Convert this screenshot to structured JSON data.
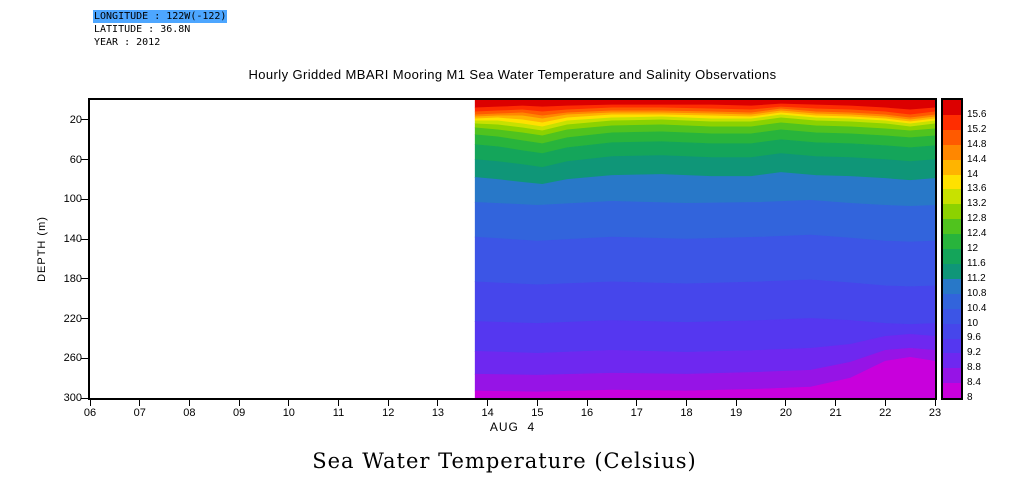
{
  "meta": {
    "longitude_line": "LONGITUDE : 122W(-122)",
    "latitude_line": "LATITUDE : 36.8N",
    "year_line": "YEAR : 2012",
    "highlight_color": "#4da6ff"
  },
  "footer_title": "Sea Water Temperature (Celsius)",
  "chart_data": {
    "type": "heatmap",
    "title": "Hourly Gridded MBARI Mooring M1 Sea Water Temperature and Salinity Observations",
    "xlabel": "AUG  4",
    "ylabel": "DEPTH (m)",
    "x_range": [
      6,
      23
    ],
    "depth_range": [
      0,
      300
    ],
    "data_time_start": 13.75,
    "x_tick_labels": [
      "06",
      "07",
      "08",
      "09",
      "10",
      "11",
      "12",
      "13",
      "14",
      "15",
      "16",
      "17",
      "18",
      "19",
      "20",
      "21",
      "22",
      "23"
    ],
    "y_tick_labels": [
      "20",
      "60",
      "100",
      "140",
      "180",
      "220",
      "260",
      "300"
    ],
    "colorbar_labels": [
      "15.6",
      "15.2",
      "14.8",
      "14.4",
      "14",
      "13.6",
      "13.2",
      "12.8",
      "12.4",
      "12",
      "11.6",
      "11.2",
      "10.8",
      "10.4",
      "10",
      "9.6",
      "9.2",
      "8.8",
      "8.4",
      "8"
    ],
    "band_colors": [
      "#dc0000",
      "#ff2d00",
      "#ff5a00",
      "#ff8700",
      "#ffb400",
      "#ffe100",
      "#c8e100",
      "#8cd200",
      "#50c31e",
      "#28b43c",
      "#14a55a",
      "#0f9678",
      "#2878c8",
      "#3264dc",
      "#3c55e6",
      "#4646eb",
      "#5537f0",
      "#6e28f0",
      "#9614e6",
      "#c800dc"
    ],
    "boundaries": [
      {
        "level": 15.6,
        "points": [
          [
            13.75,
            8
          ],
          [
            14.2,
            7
          ],
          [
            14.7,
            6
          ],
          [
            15.1,
            7
          ],
          [
            15.6,
            6
          ],
          [
            16.5,
            5
          ],
          [
            17.5,
            5
          ],
          [
            18.5,
            5
          ],
          [
            19.3,
            6
          ],
          [
            19.9,
            4
          ],
          [
            20.6,
            5
          ],
          [
            21.3,
            6
          ],
          [
            22,
            8
          ],
          [
            22.5,
            10
          ],
          [
            23,
            8
          ]
        ]
      },
      {
        "level": 15.2,
        "points": [
          [
            13.75,
            12
          ],
          [
            14.2,
            11
          ],
          [
            14.7,
            10
          ],
          [
            15.1,
            12
          ],
          [
            15.6,
            10
          ],
          [
            16.5,
            8
          ],
          [
            17.5,
            8
          ],
          [
            18.5,
            9
          ],
          [
            19.3,
            10
          ],
          [
            19.9,
            7
          ],
          [
            20.6,
            9
          ],
          [
            21.3,
            10
          ],
          [
            22,
            12
          ],
          [
            22.5,
            15
          ],
          [
            23,
            12
          ]
        ]
      },
      {
        "level": 14.8,
        "points": [
          [
            13.75,
            15
          ],
          [
            14.2,
            14
          ],
          [
            14.7,
            13
          ],
          [
            15.1,
            16
          ],
          [
            15.6,
            13
          ],
          [
            16.5,
            11
          ],
          [
            17.5,
            11
          ],
          [
            18.5,
            12
          ],
          [
            19.3,
            13
          ],
          [
            19.9,
            9
          ],
          [
            20.6,
            12
          ],
          [
            21.3,
            13
          ],
          [
            22,
            15
          ],
          [
            22.5,
            18
          ],
          [
            23,
            15
          ]
        ]
      },
      {
        "level": 14.4,
        "points": [
          [
            13.75,
            17
          ],
          [
            14.2,
            16
          ],
          [
            14.7,
            16
          ],
          [
            15.1,
            19
          ],
          [
            15.6,
            15
          ],
          [
            16.5,
            13
          ],
          [
            17.5,
            13
          ],
          [
            18.5,
            14
          ],
          [
            19.3,
            15
          ],
          [
            19.9,
            11
          ],
          [
            20.6,
            14
          ],
          [
            21.3,
            15
          ],
          [
            22,
            17
          ],
          [
            22.5,
            20
          ],
          [
            23,
            17
          ]
        ]
      },
      {
        "level": 14.0,
        "points": [
          [
            13.75,
            19
          ],
          [
            14.2,
            18
          ],
          [
            14.7,
            20
          ],
          [
            15.1,
            23
          ],
          [
            15.6,
            18
          ],
          [
            16.5,
            15
          ],
          [
            17.5,
            15
          ],
          [
            18.5,
            16
          ],
          [
            19.3,
            17
          ],
          [
            19.9,
            13
          ],
          [
            20.6,
            16
          ],
          [
            21.3,
            17
          ],
          [
            22,
            19
          ],
          [
            22.5,
            22
          ],
          [
            23,
            19
          ]
        ]
      },
      {
        "level": 13.6,
        "points": [
          [
            13.75,
            21
          ],
          [
            14.2,
            21
          ],
          [
            14.7,
            24
          ],
          [
            15.1,
            27
          ],
          [
            15.6,
            21
          ],
          [
            16.5,
            18
          ],
          [
            17.5,
            17
          ],
          [
            18.5,
            19
          ],
          [
            19.3,
            19
          ],
          [
            19.9,
            15
          ],
          [
            20.6,
            18
          ],
          [
            21.3,
            19
          ],
          [
            22,
            21
          ],
          [
            22.5,
            24
          ],
          [
            23,
            21
          ]
        ]
      },
      {
        "level": 13.2,
        "points": [
          [
            13.75,
            24
          ],
          [
            14.2,
            25
          ],
          [
            14.7,
            28
          ],
          [
            15.1,
            31
          ],
          [
            15.6,
            25
          ],
          [
            16.5,
            21
          ],
          [
            17.5,
            20
          ],
          [
            18.5,
            22
          ],
          [
            19.3,
            22
          ],
          [
            19.9,
            18
          ],
          [
            20.6,
            21
          ],
          [
            21.3,
            22
          ],
          [
            22,
            24
          ],
          [
            22.5,
            27
          ],
          [
            23,
            24
          ]
        ]
      },
      {
        "level": 12.8,
        "points": [
          [
            13.75,
            28
          ],
          [
            14.2,
            30
          ],
          [
            14.7,
            33
          ],
          [
            15.1,
            36
          ],
          [
            15.6,
            30
          ],
          [
            16.5,
            26
          ],
          [
            17.5,
            25
          ],
          [
            18.5,
            27
          ],
          [
            19.3,
            27
          ],
          [
            19.9,
            23
          ],
          [
            20.6,
            26
          ],
          [
            21.3,
            27
          ],
          [
            22,
            29
          ],
          [
            22.5,
            31
          ],
          [
            23,
            29
          ]
        ]
      },
      {
        "level": 12.4,
        "points": [
          [
            13.75,
            35
          ],
          [
            14.2,
            37
          ],
          [
            14.7,
            41
          ],
          [
            15.1,
            44
          ],
          [
            15.6,
            38
          ],
          [
            16.5,
            33
          ],
          [
            17.5,
            32
          ],
          [
            18.5,
            34
          ],
          [
            19.3,
            34
          ],
          [
            19.9,
            30
          ],
          [
            20.6,
            33
          ],
          [
            21.3,
            34
          ],
          [
            22,
            36
          ],
          [
            22.5,
            38
          ],
          [
            23,
            36
          ]
        ]
      },
      {
        "level": 12.0,
        "points": [
          [
            13.75,
            45
          ],
          [
            14.2,
            47
          ],
          [
            14.7,
            51
          ],
          [
            15.1,
            54
          ],
          [
            15.6,
            48
          ],
          [
            16.5,
            43
          ],
          [
            17.5,
            42
          ],
          [
            18.5,
            44
          ],
          [
            19.3,
            44
          ],
          [
            19.9,
            40
          ],
          [
            20.6,
            43
          ],
          [
            21.3,
            44
          ],
          [
            22,
            46
          ],
          [
            22.5,
            48
          ],
          [
            23,
            46
          ]
        ]
      },
      {
        "level": 11.6,
        "points": [
          [
            13.75,
            60
          ],
          [
            14.2,
            62
          ],
          [
            14.7,
            65
          ],
          [
            15.1,
            68
          ],
          [
            15.6,
            62
          ],
          [
            16.5,
            57
          ],
          [
            17.5,
            56
          ],
          [
            18.5,
            58
          ],
          [
            19.3,
            58
          ],
          [
            19.9,
            54
          ],
          [
            20.6,
            57
          ],
          [
            21.3,
            58
          ],
          [
            22,
            60
          ],
          [
            22.5,
            62
          ],
          [
            23,
            60
          ]
        ]
      },
      {
        "level": 11.2,
        "points": [
          [
            13.75,
            78
          ],
          [
            14.2,
            80
          ],
          [
            14.7,
            83
          ],
          [
            15.1,
            85
          ],
          [
            15.6,
            80
          ],
          [
            16.5,
            76
          ],
          [
            17.5,
            75
          ],
          [
            18.5,
            77
          ],
          [
            19.3,
            77
          ],
          [
            19.9,
            73
          ],
          [
            20.6,
            76
          ],
          [
            21.3,
            77
          ],
          [
            22,
            79
          ],
          [
            22.5,
            81
          ],
          [
            23,
            79
          ]
        ]
      },
      {
        "level": 10.8,
        "points": [
          [
            13.75,
            103
          ],
          [
            15,
            106
          ],
          [
            16.5,
            102
          ],
          [
            18,
            104
          ],
          [
            19.5,
            103
          ],
          [
            20.5,
            101
          ],
          [
            21.3,
            104
          ],
          [
            22,
            106
          ],
          [
            22.5,
            107
          ],
          [
            23,
            106
          ]
        ]
      },
      {
        "level": 10.4,
        "points": [
          [
            13.75,
            138
          ],
          [
            15,
            142
          ],
          [
            16.5,
            138
          ],
          [
            18,
            140
          ],
          [
            19.5,
            138
          ],
          [
            20.5,
            136
          ],
          [
            21.3,
            139
          ],
          [
            22,
            142
          ],
          [
            22.5,
            143
          ],
          [
            23,
            142
          ]
        ]
      },
      {
        "level": 10.0,
        "points": [
          [
            13.75,
            183
          ],
          [
            15,
            186
          ],
          [
            16.5,
            183
          ],
          [
            18,
            185
          ],
          [
            19.5,
            183
          ],
          [
            20.5,
            181
          ],
          [
            21.3,
            184
          ],
          [
            22,
            187
          ],
          [
            22.5,
            188
          ],
          [
            23,
            187
          ]
        ]
      },
      {
        "level": 9.6,
        "points": [
          [
            13.75,
            223
          ],
          [
            15,
            225
          ],
          [
            16.5,
            222
          ],
          [
            18,
            224
          ],
          [
            19.5,
            222
          ],
          [
            20.5,
            220
          ],
          [
            21.3,
            222
          ],
          [
            22,
            225
          ],
          [
            22.5,
            226
          ],
          [
            23,
            225
          ]
        ]
      },
      {
        "level": 9.2,
        "points": [
          [
            13.75,
            253
          ],
          [
            15,
            255
          ],
          [
            16.5,
            252
          ],
          [
            18,
            254
          ],
          [
            19.5,
            252
          ],
          [
            20.5,
            250
          ],
          [
            21.3,
            246
          ],
          [
            22,
            238
          ],
          [
            22.5,
            236
          ],
          [
            23,
            238
          ]
        ]
      },
      {
        "level": 8.8,
        "points": [
          [
            13.75,
            276
          ],
          [
            15,
            277
          ],
          [
            16.5,
            275
          ],
          [
            18,
            276
          ],
          [
            19.5,
            274
          ],
          [
            20.5,
            272
          ],
          [
            21.3,
            264
          ],
          [
            22,
            252
          ],
          [
            22.5,
            250
          ],
          [
            23,
            252
          ]
        ]
      },
      {
        "level": 8.4,
        "points": [
          [
            13.75,
            293
          ],
          [
            15,
            294
          ],
          [
            16.5,
            292
          ],
          [
            18,
            293
          ],
          [
            19.5,
            291
          ],
          [
            20.5,
            289
          ],
          [
            21.3,
            280
          ],
          [
            22,
            263
          ],
          [
            22.5,
            259
          ],
          [
            23,
            263
          ]
        ]
      }
    ]
  }
}
